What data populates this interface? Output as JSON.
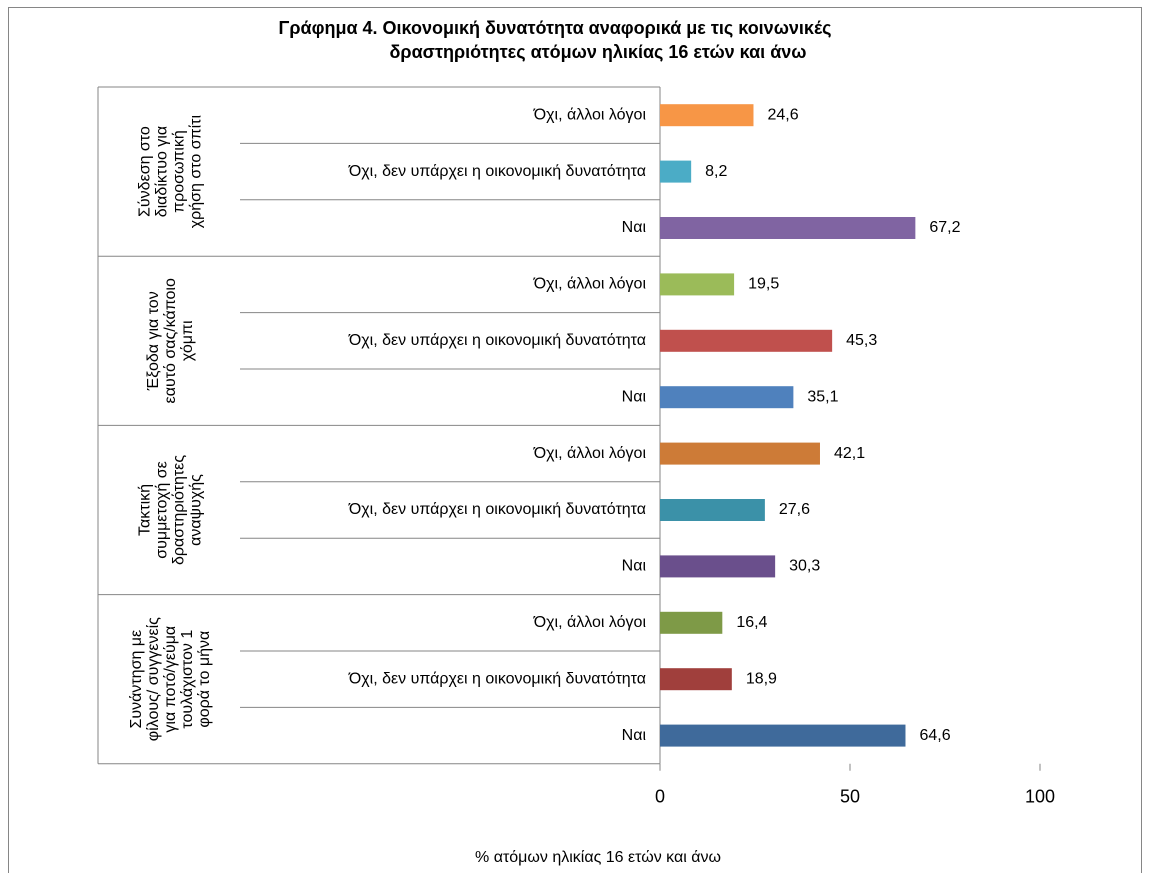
{
  "chart_data": {
    "type": "bar",
    "orientation": "horizontal",
    "title": [
      "Γράφημα 4. Οικονομική δυνατότητα αναφορικά με τις κοινωνικές",
      "δραστηριότητες ατόμων ηλικίας 16 ετών και άνω"
    ],
    "x_label": "% ατόμων ηλικίας 16 ετών και άνω",
    "xlim": [
      0,
      100
    ],
    "xticks": [
      0,
      50,
      100
    ],
    "grid": false,
    "groups": [
      {
        "name": [
          "Σύνδεση στο",
          "διαδίκτυο για",
          "προσωπική",
          "χρήση στο σπίτι"
        ],
        "categories": [
          "Όχι, άλλοι λόγοι",
          "Όχι, δεν υπάρχει η οικονομική δυνατότητα",
          "Ναι"
        ],
        "values": [
          24.6,
          8.2,
          67.2
        ],
        "value_labels": [
          "24,6",
          "8,2",
          "67,2"
        ],
        "colors": [
          "#f79646",
          "#4bacc6",
          "#8064a2"
        ]
      },
      {
        "name": [
          "Έξοδα για τον",
          "εαυτό σας/κάποιο",
          "χόμπι"
        ],
        "categories": [
          "Όχι, άλλοι λόγοι",
          "Όχι, δεν υπάρχει η οικονομική δυνατότητα",
          "Ναι"
        ],
        "values": [
          19.5,
          45.3,
          35.1
        ],
        "value_labels": [
          "19,5",
          "45,3",
          "35,1"
        ],
        "colors": [
          "#9bbb59",
          "#c0504d",
          "#4f81bd"
        ]
      },
      {
        "name": [
          "Τακτική",
          "συμμετοχή σε",
          "δραστηριότητες",
          "αναψυχής"
        ],
        "categories": [
          "Όχι, άλλοι λόγοι",
          "Όχι, δεν υπάρχει η οικονομική δυνατότητα",
          "Ναι"
        ],
        "values": [
          42.1,
          27.6,
          30.3
        ],
        "value_labels": [
          "42,1",
          "27,6",
          "30,3"
        ],
        "colors": [
          "#cd7b37",
          "#3b91a8",
          "#6a4f8c"
        ]
      },
      {
        "name": [
          "Συνάντηση  με",
          "φίλους/ συγγενείς",
          "για ποτό/γεύμα",
          "τουλάχιστον 1",
          "φορά το μήνα"
        ],
        "categories": [
          "Όχι, άλλοι λόγοι",
          "Όχι, δεν υπάρχει η οικονομική δυνατότητα",
          "Ναι"
        ],
        "values": [
          16.4,
          18.9,
          64.6
        ],
        "value_labels": [
          "16,4",
          "18,9",
          "64,6"
        ],
        "colors": [
          "#7e9a47",
          "#a03f3c",
          "#3f6a9b"
        ]
      }
    ]
  }
}
